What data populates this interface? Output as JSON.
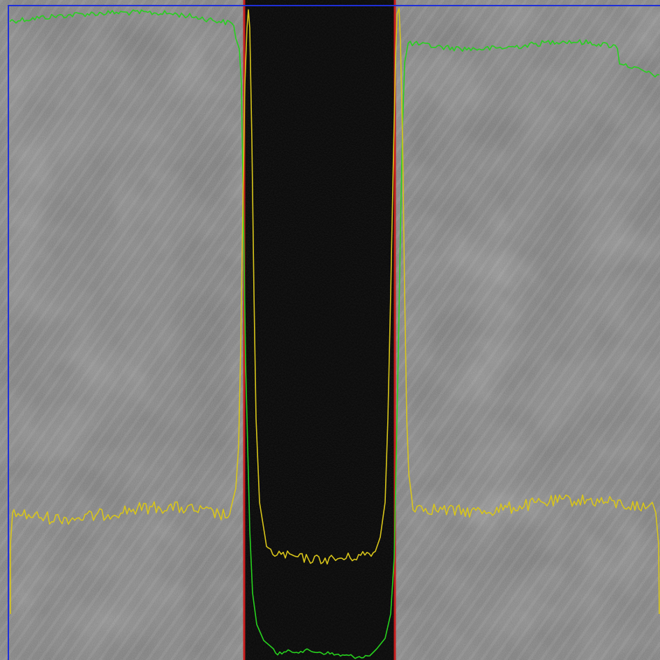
{
  "image": {
    "kind": "grayscale-microscopy-with-intensity-profiles",
    "background": "#7a7a7a",
    "band_fill": "#050505",
    "colors": {
      "roi_frame": "#1f2fd8",
      "band_edge": "#c81e1e",
      "profile_green": "#27d11e",
      "profile_yellow": "#d8c51a"
    }
  }
}
